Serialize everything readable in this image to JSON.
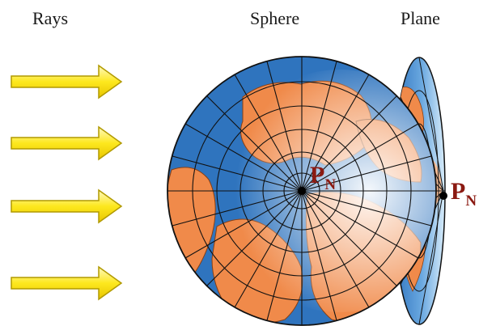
{
  "labels": {
    "rays": "Rays",
    "sphere": "Sphere",
    "plane": "Plane"
  },
  "pole": {
    "letter": "P",
    "subscript": "N"
  },
  "colors": {
    "ocean": "#2f74be",
    "land": "#f08a4a",
    "land_light": "#f7bd96",
    "ray_fill": "#fde81e",
    "ray_outline": "#b19a00",
    "pole_label": "#8b1a12",
    "grid_line": "#111111"
  },
  "icons": {
    "ray": "right-arrow-icon",
    "pole": "dot-icon"
  }
}
